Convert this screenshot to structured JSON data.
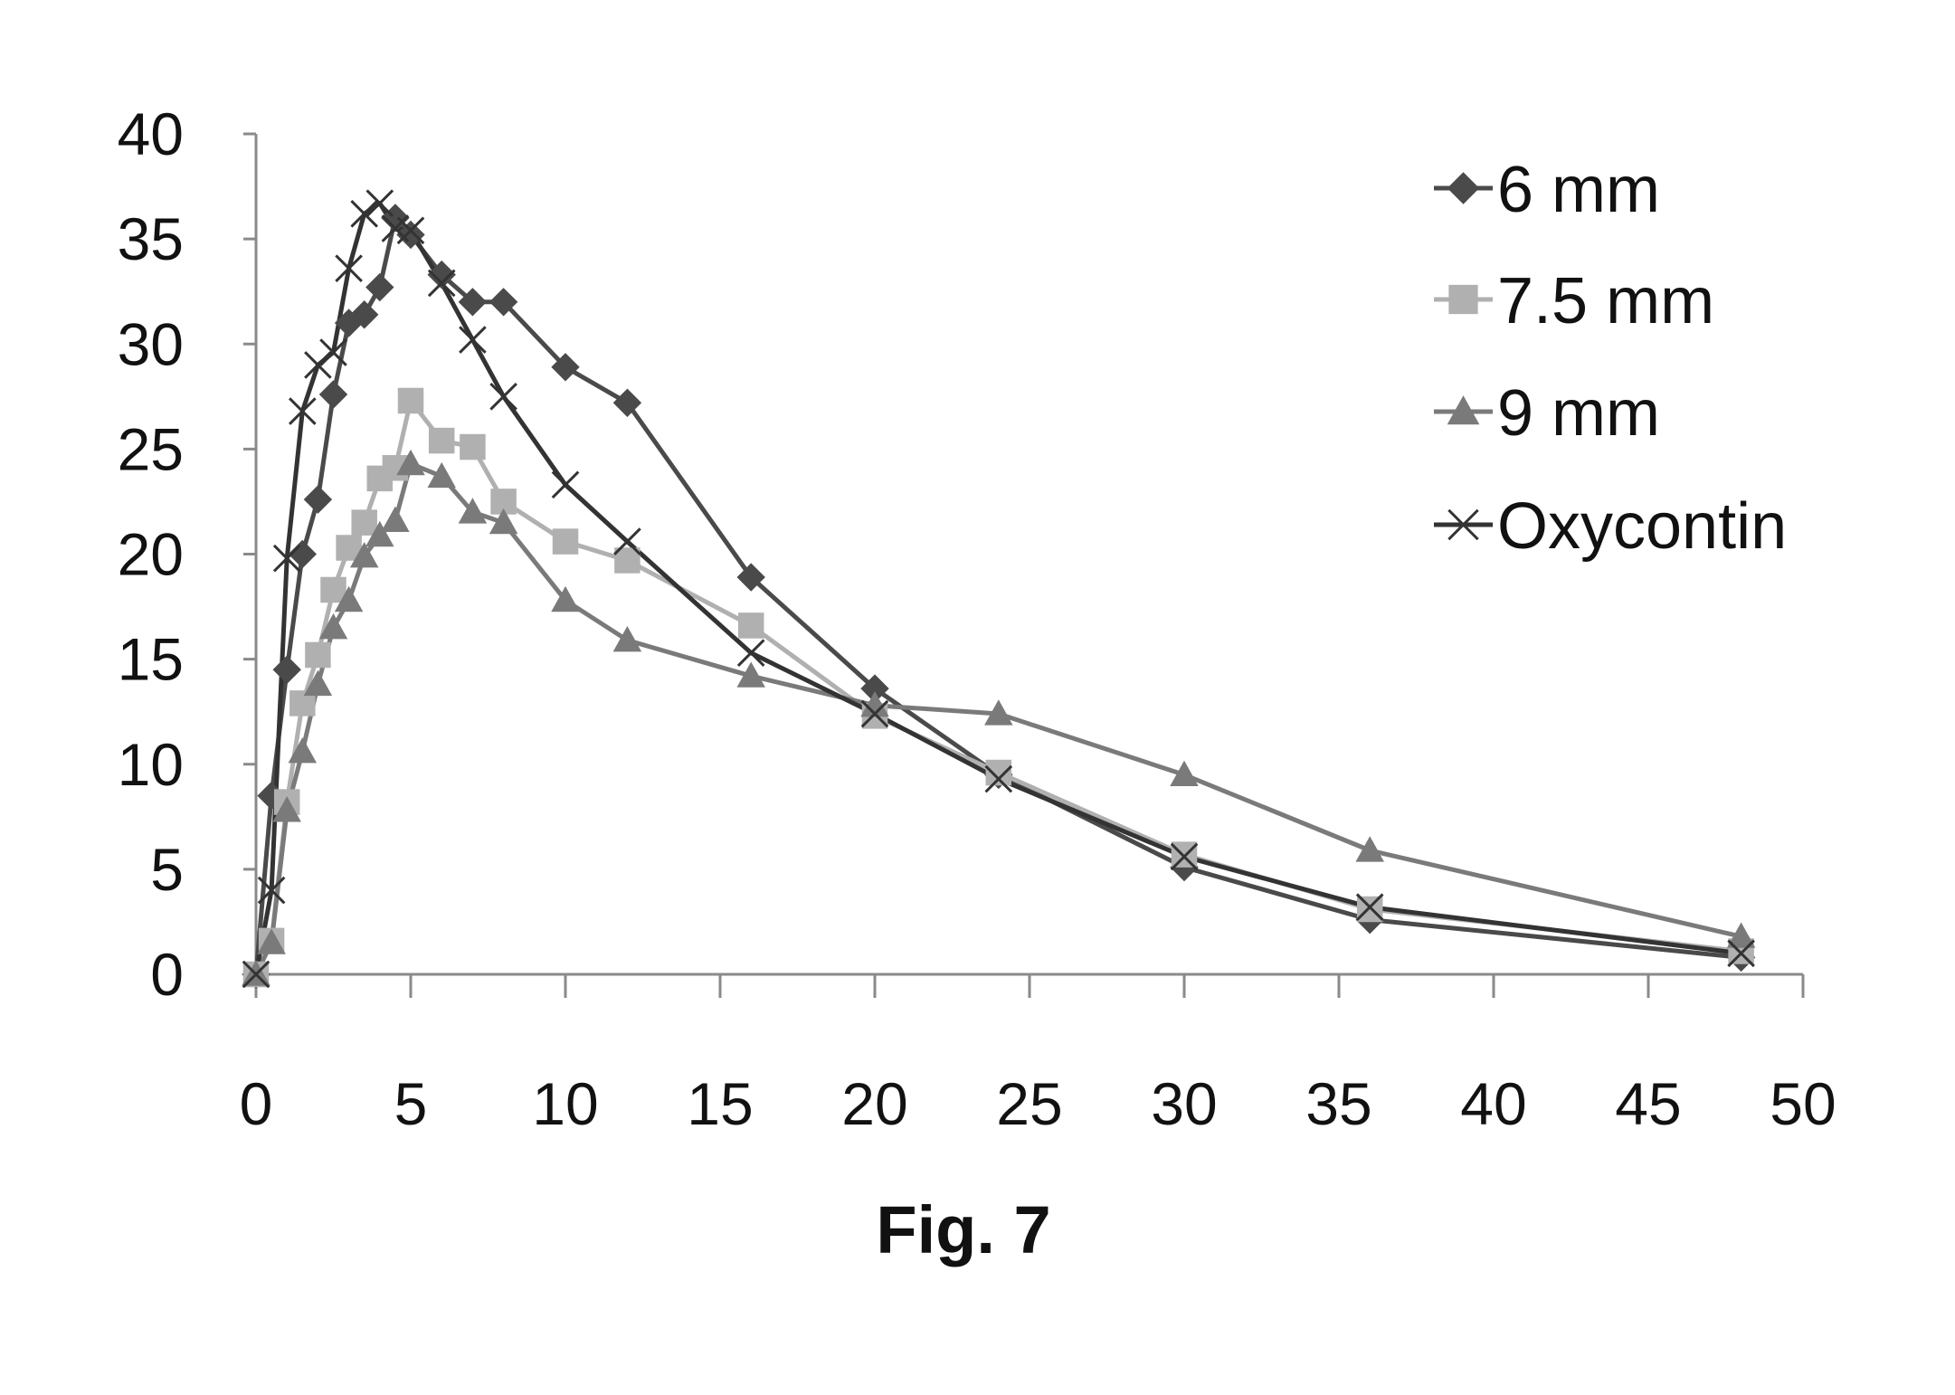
{
  "caption": "Fig. 7",
  "colors": {
    "axis": "#8a8a8a",
    "text": "#111111",
    "background": "#ffffff"
  },
  "chart_data": {
    "type": "line",
    "title": "",
    "xlabel": "",
    "ylabel": "",
    "xlim": [
      0,
      50
    ],
    "ylim": [
      0,
      40
    ],
    "xticks": [
      "0",
      "5",
      "10",
      "15",
      "20",
      "25",
      "30",
      "35",
      "40",
      "45",
      "50"
    ],
    "yticks": [
      "0",
      "5",
      "10",
      "15",
      "20",
      "25",
      "30",
      "35",
      "40"
    ],
    "grid": false,
    "legend_position": "top-right",
    "series": [
      {
        "name": "6 mm",
        "marker": "diamond",
        "color": "#4a4a4a",
        "x": [
          0,
          0.5,
          1,
          1.5,
          2,
          2.5,
          3,
          3.5,
          4,
          4.5,
          5,
          6,
          7,
          8,
          10,
          12,
          16,
          20,
          24,
          30,
          36,
          48
        ],
        "y": [
          0,
          8.5,
          14.5,
          20,
          22.6,
          27.6,
          31,
          31.4,
          32.7,
          36,
          35.2,
          33.3,
          32,
          32,
          28.9,
          27.2,
          18.9,
          13.6,
          9.5,
          5.1,
          2.6,
          0.8
        ]
      },
      {
        "name": "7.5 mm",
        "marker": "square",
        "color": "#b0b0b0",
        "x": [
          0,
          0.5,
          1,
          1.5,
          2,
          2.5,
          3,
          3.5,
          4,
          4.5,
          5,
          6,
          7,
          8,
          10,
          12,
          16,
          20,
          24,
          30,
          36,
          48
        ],
        "y": [
          0,
          1.6,
          8.2,
          12.9,
          15.2,
          18.3,
          20.3,
          21.5,
          23.6,
          24.1,
          27.3,
          25.4,
          25.1,
          22.5,
          20.6,
          19.7,
          16.6,
          12.3,
          9.6,
          5.7,
          3.1,
          1.1
        ]
      },
      {
        "name": "9 mm",
        "marker": "triangle",
        "color": "#7a7a7a",
        "x": [
          0,
          0.5,
          1,
          1.5,
          2,
          2.5,
          3,
          3.5,
          4,
          4.5,
          5,
          6,
          7,
          8,
          10,
          12,
          16,
          20,
          24,
          30,
          36,
          48
        ],
        "y": [
          0,
          1.5,
          7.8,
          10.6,
          13.8,
          16.5,
          17.8,
          19.9,
          20.9,
          21.6,
          24.3,
          23.7,
          22,
          21.5,
          17.8,
          15.9,
          14.2,
          12.8,
          12.4,
          9.5,
          5.9,
          1.8
        ]
      },
      {
        "name": "Oxycontin",
        "marker": "x",
        "color": "#333333",
        "x": [
          0,
          0.5,
          1,
          1.5,
          2,
          2.5,
          3,
          3.5,
          4,
          4.5,
          5,
          6,
          7,
          8,
          10,
          12,
          16,
          20,
          24,
          30,
          36,
          48
        ],
        "y": [
          0,
          4,
          19.8,
          26.8,
          29,
          29.6,
          33.6,
          36.2,
          36.7,
          35.5,
          35.4,
          32.9,
          30.2,
          27.5,
          23.3,
          20.6,
          15.3,
          12.4,
          9.3,
          5.6,
          3.2,
          1
        ]
      }
    ]
  }
}
